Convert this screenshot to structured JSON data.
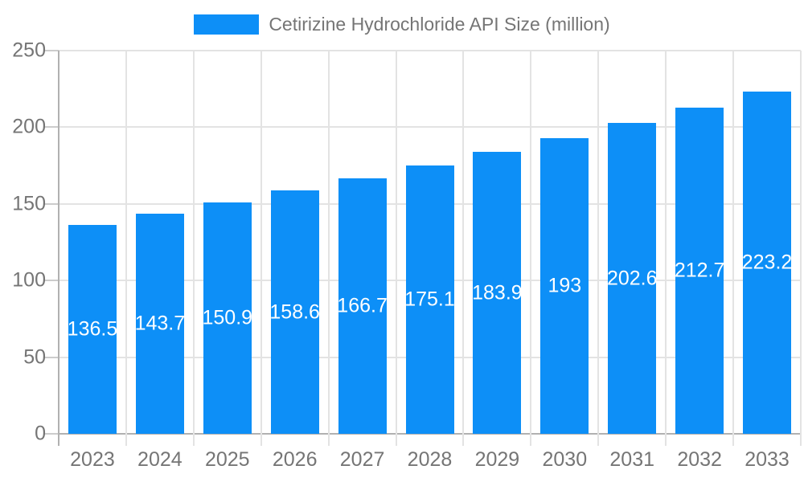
{
  "chart_data": {
    "type": "bar",
    "title": "Cetirizine Hydrochloride API Size (million)",
    "legend": [
      "Cetirizine Hydrochloride API Size (million)"
    ],
    "legend_position": "top-center",
    "categories": [
      "2023",
      "2024",
      "2025",
      "2026",
      "2027",
      "2028",
      "2029",
      "2030",
      "2031",
      "2032",
      "2033"
    ],
    "series": [
      {
        "name": "Cetirizine Hydrochloride API Size (million)",
        "values": [
          136.5,
          143.7,
          150.9,
          158.6,
          166.7,
          175.1,
          183.9,
          193,
          202.6,
          212.7,
          223.2
        ]
      }
    ],
    "bar_value_labels": [
      "136.5",
      "143.7",
      "150.9",
      "158.6",
      "166.7",
      "175.1",
      "183.9",
      "193",
      "202.6",
      "212.7",
      "223.2"
    ],
    "xlabel": "",
    "ylabel": "",
    "ylim": [
      0,
      250
    ],
    "yticks": [
      0,
      50,
      100,
      150,
      200,
      250
    ],
    "grid": "horizontal and vertical gridlines on",
    "colors": {
      "bar": "#0d8ff7",
      "bar_label_text": "#ffffff",
      "axis_text": "#757575",
      "gridline": "#e3e3e3",
      "axis_line": "#b1b1b1",
      "tick": "#cccccc",
      "background": "#ffffff"
    }
  }
}
